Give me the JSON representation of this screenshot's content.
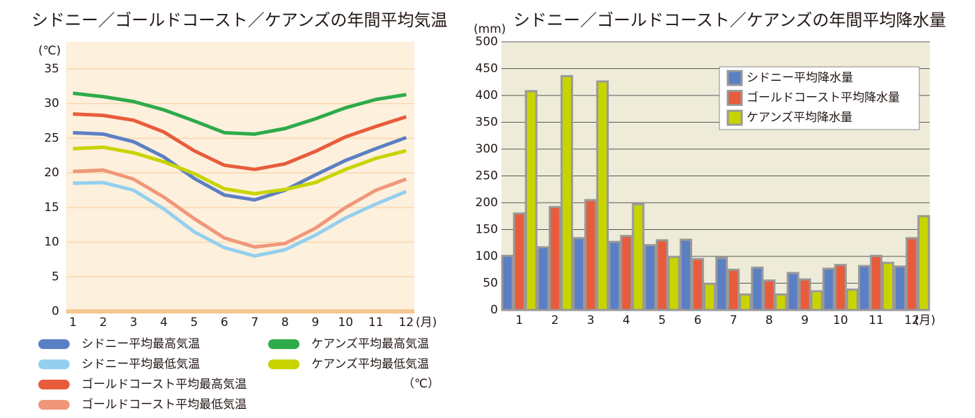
{
  "chart_data": [
    {
      "type": "line",
      "title": "シドニー／ゴールドコースト／ケアンズの年間平均気温",
      "y_label": "(℃)",
      "x_label": "(月)",
      "unit_note": "（℃）",
      "categories": [
        "1",
        "2",
        "3",
        "4",
        "5",
        "6",
        "7",
        "8",
        "9",
        "10",
        "11",
        "12"
      ],
      "ylim": [
        0,
        35
      ],
      "yticks": [
        0,
        5,
        10,
        15,
        20,
        25,
        30,
        35
      ],
      "grid": true,
      "series": [
        {
          "name": "シドニー平均最高気温",
          "color": "#5b7fc4",
          "values": [
            25.8,
            25.6,
            24.5,
            22.3,
            19.2,
            16.8,
            16.1,
            17.5,
            19.7,
            21.8,
            23.5,
            25.1
          ]
        },
        {
          "name": "シドニー平均最低気温",
          "color": "#94cff0",
          "values": [
            18.5,
            18.6,
            17.5,
            14.8,
            11.5,
            9.2,
            8.0,
            8.9,
            11.0,
            13.5,
            15.5,
            17.3
          ]
        },
        {
          "name": "ゴールドコースト平均最高気温",
          "color": "#e85c3c",
          "values": [
            28.5,
            28.3,
            27.6,
            25.9,
            23.2,
            21.1,
            20.5,
            21.3,
            23.1,
            25.2,
            26.7,
            28.1
          ]
        },
        {
          "name": "ゴールドコースト平均最低気温",
          "color": "#f0977a",
          "values": [
            20.2,
            20.4,
            19.1,
            16.5,
            13.4,
            10.6,
            9.3,
            9.8,
            12.0,
            15.0,
            17.5,
            19.1
          ]
        },
        {
          "name": "ケアンズ平均最高気温",
          "color": "#2eab4a",
          "values": [
            31.5,
            31.0,
            30.3,
            29.1,
            27.5,
            25.8,
            25.6,
            26.4,
            27.8,
            29.4,
            30.6,
            31.3
          ]
        },
        {
          "name": "ケアンズ平均最低気温",
          "color": "#c8d400",
          "values": [
            23.5,
            23.7,
            22.9,
            21.6,
            19.9,
            17.7,
            17.0,
            17.6,
            18.6,
            20.5,
            22.1,
            23.2
          ]
        }
      ]
    },
    {
      "type": "bar",
      "title": "シドニー／ゴールドコースト／ケアンズの年間平均降水量",
      "y_label": "(mm)",
      "x_label": "(月)",
      "categories": [
        "1",
        "2",
        "3",
        "4",
        "5",
        "6",
        "7",
        "8",
        "9",
        "10",
        "11",
        "12"
      ],
      "ylim": [
        0,
        500
      ],
      "yticks": [
        0,
        50,
        100,
        150,
        200,
        250,
        300,
        350,
        400,
        450,
        500
      ],
      "grid": true,
      "series": [
        {
          "name": "シドニー平均降水量",
          "color": "#5b7fc4",
          "values": [
            101,
            117,
            134,
            127,
            121,
            131,
            97,
            79,
            69,
            77,
            82,
            81
          ]
        },
        {
          "name": "ゴールドコースト平均降水量",
          "color": "#e85c3c",
          "values": [
            180,
            192,
            205,
            138,
            130,
            95,
            75,
            55,
            57,
            84,
            101,
            134
          ]
        },
        {
          "name": "ケアンズ平均降水量",
          "color": "#c8d400",
          "values": [
            408,
            436,
            426,
            197,
            99,
            49,
            29,
            29,
            35,
            38,
            88,
            175
          ]
        }
      ]
    }
  ]
}
